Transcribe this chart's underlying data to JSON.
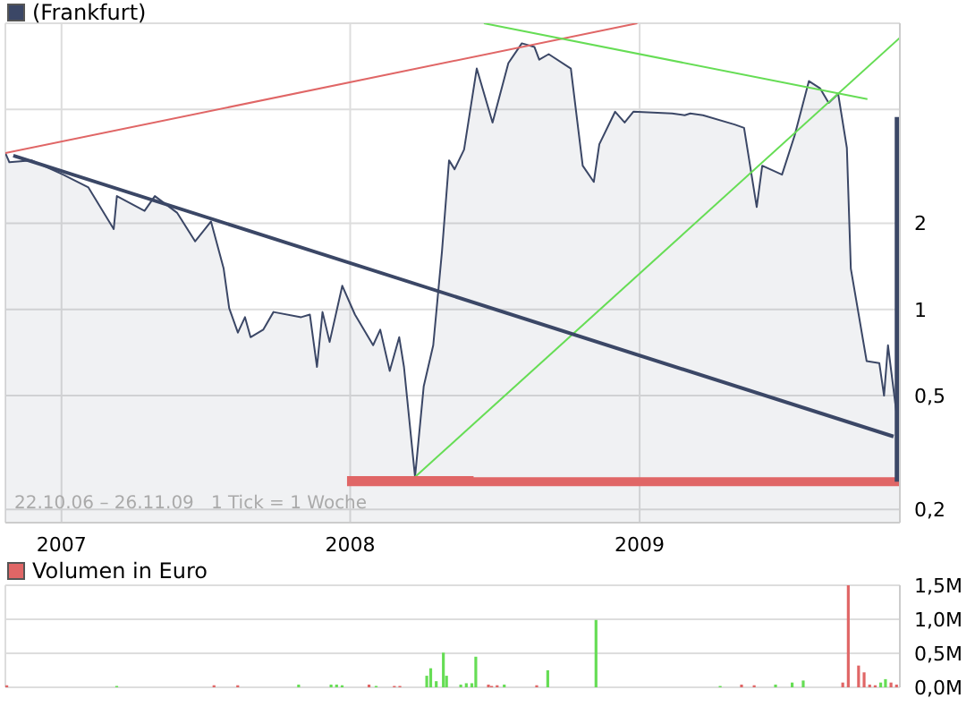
{
  "chart_data": [
    {
      "type": "area",
      "legend": "top left",
      "grid": true,
      "log": "y",
      "marker": "none",
      "annotations": [
        "22.10.06 – 26.11.09   1 Tick = 1 Woche"
      ],
      "xlim": [
        "2006-10-22",
        "2009-11-26"
      ],
      "xticks": [
        "2007",
        "2008",
        "2009"
      ],
      "ylim": [
        0.18,
        10
      ],
      "yticks": [
        {
          "value": 0.2,
          "label": "0,2"
        },
        {
          "value": 0.5,
          "label": "0,5"
        },
        {
          "value": 1,
          "label": "1"
        },
        {
          "value": 2,
          "label": "2"
        },
        {
          "value": 5,
          "label": null
        },
        {
          "value": 10,
          "label": null
        }
      ],
      "series": [
        {
          "name": "(Frankfurt)",
          "color": "#3b4766",
          "x": [
            "2006-10-22",
            "2006-10-27",
            "2006-11-24",
            "2007-01-03",
            "2007-02-04",
            "2007-03-08",
            "2007-03-12",
            "2007-04-16",
            "2007-04-29",
            "2007-05-27",
            "2007-06-19",
            "2007-07-09",
            "2007-07-25",
            "2007-08-01",
            "2007-08-12",
            "2007-08-21",
            "2007-08-28",
            "2007-09-13",
            "2007-09-26",
            "2007-10-31",
            "2007-11-11",
            "2007-11-20",
            "2007-11-27",
            "2007-12-06",
            "2007-12-22",
            "2008-01-07",
            "2008-01-30",
            "2008-02-08",
            "2008-02-20",
            "2008-03-03",
            "2008-03-09",
            "2008-03-23",
            "2008-04-03",
            "2008-04-15",
            "2008-04-26",
            "2008-05-05",
            "2008-05-12",
            "2008-05-24",
            "2008-06-09",
            "2008-06-29",
            "2008-07-19",
            "2008-08-05",
            "2008-08-21",
            "2008-08-27",
            "2008-09-08",
            "2008-10-06",
            "2008-10-21",
            "2008-11-04",
            "2008-11-11",
            "2008-12-01",
            "2008-12-13",
            "2008-12-24",
            "2009-02-11",
            "2009-02-27",
            "2009-03-06",
            "2009-03-22",
            "2009-05-01",
            "2009-05-13",
            "2009-05-29",
            "2009-06-05",
            "2009-06-30",
            "2009-07-16",
            "2009-08-03",
            "2009-08-17",
            "2009-08-28",
            "2009-09-09",
            "2009-09-20",
            "2009-09-25",
            "2009-10-15",
            "2009-10-31",
            "2009-11-06",
            "2009-11-11",
            "2009-11-26"
          ],
          "values": [
            3.52,
            3.27,
            3.32,
            2.96,
            2.67,
            1.91,
            2.49,
            2.21,
            2.49,
            2.18,
            1.73,
            2.03,
            1.39,
            1.01,
            0.83,
            0.94,
            0.8,
            0.85,
            0.98,
            0.94,
            0.96,
            0.63,
            0.98,
            0.77,
            1.21,
            0.96,
            0.75,
            0.85,
            0.61,
            0.8,
            0.63,
            0.26,
            0.54,
            0.75,
            1.59,
            3.32,
            3.09,
            3.62,
            6.95,
            4.5,
            7.26,
            8.51,
            8.26,
            7.46,
            7.8,
            6.95,
            3.18,
            2.79,
            3.78,
            4.91,
            4.5,
            4.91,
            4.84,
            4.77,
            4.84,
            4.77,
            4.43,
            4.31,
            2.28,
            3.18,
            2.96,
            4.06,
            6.28,
            5.93,
            5.27,
            5.67,
            3.67,
            1.39,
            0.66,
            0.65,
            0.5,
            0.75,
            0.35
          ]
        },
        {
          "type": "line",
          "color": "#e06666",
          "x": [
            "2006-10-22",
            "2008-12-29"
          ],
          "values": [
            3.52,
            10
          ]
        },
        {
          "type": "line",
          "color": "#66dd55",
          "x": [
            "2008-06-18",
            "2009-10-16"
          ],
          "values": [
            10,
            5.43
          ]
        },
        {
          "type": "line",
          "color": "#66dd55",
          "x": [
            "2008-03-23",
            "2009-11-26"
          ],
          "values": [
            0.26,
            8.9
          ]
        },
        {
          "type": "line",
          "color": "#e06666",
          "x": [
            "2007-12-28",
            "2008-06-05"
          ],
          "values": [
            0.26,
            0.26
          ]
        },
        {
          "type": "line",
          "color": "#e06666",
          "x": [
            "2007-12-28",
            "2009-11-26"
          ],
          "values": [
            0.25,
            0.25
          ]
        },
        {
          "type": "line",
          "color": "#3b4766",
          "x": [
            "2009-11-24",
            "2009-11-24"
          ],
          "values": [
            0.25,
            4.7
          ]
        },
        {
          "type": "line",
          "color": "#3b4766",
          "x": [
            "2006-11-01",
            "2009-11-18"
          ],
          "values": [
            3.45,
            0.36
          ]
        }
      ]
    },
    {
      "type": "bar",
      "legend": "top left",
      "grid": true,
      "tick_labels": "y",
      "xlim": [
        "2006-10-22",
        "2009-11-26"
      ],
      "xticks": [
        "2007",
        "2008",
        "2009"
      ],
      "ylim": [
        0,
        1.5
      ],
      "yticks": [
        {
          "value": 0,
          "label": "0,0M"
        },
        {
          "value": 0.5,
          "label": "0,5M"
        },
        {
          "value": 1,
          "label": "1,0M"
        },
        {
          "value": 1.5,
          "label": "1,5M"
        }
      ],
      "series": [
        {
          "name": "Volumen in Euro",
          "color": "#e06666",
          "x": [
            "2006-10-24",
            "2007-03-12",
            "2007-07-13",
            "2007-08-12",
            "2007-10-28",
            "2007-12-08",
            "2007-12-15",
            "2007-12-22",
            "2008-01-25",
            "2008-02-03",
            "2008-02-26",
            "2008-03-04",
            "2008-04-07",
            "2008-04-12",
            "2008-04-19",
            "2008-04-28",
            "2008-05-02",
            "2008-05-20",
            "2008-05-27",
            "2008-06-03",
            "2008-06-08",
            "2008-06-24",
            "2008-06-28",
            "2008-07-05",
            "2008-07-14",
            "2008-08-24",
            "2008-09-07",
            "2008-11-07",
            "2009-04-13",
            "2009-05-10",
            "2009-05-26",
            "2009-06-22",
            "2009-07-13",
            "2009-07-27",
            "2009-09-15",
            "2009-09-22",
            "2009-10-05",
            "2009-10-12",
            "2009-10-19",
            "2009-10-26",
            "2009-11-02",
            "2009-11-08",
            "2009-11-15",
            "2009-11-22"
          ],
          "values": [
            0.03,
            0.02,
            0.03,
            0.03,
            0.04,
            0.04,
            0.04,
            0.03,
            0.04,
            0.02,
            0.02,
            0.02,
            0.17,
            0.28,
            0.09,
            0.51,
            0.17,
            0.04,
            0.06,
            0.06,
            0.45,
            0.04,
            0.02,
            0.03,
            0.04,
            0.03,
            0.25,
            0.99,
            0.02,
            0.04,
            0.03,
            0.04,
            0.07,
            0.1,
            0.07,
            1.5,
            0.32,
            0.22,
            0.04,
            0.03,
            0.07,
            0.12,
            0.07,
            0.04
          ],
          "colors": [
            "#e06666",
            "#66dd55",
            "#e06666",
            "#e06666",
            "#66dd55",
            "#66dd55",
            "#66dd55",
            "#66dd55",
            "#e06666",
            "#66dd55",
            "#e06666",
            "#e06666",
            "#66dd55",
            "#66dd55",
            "#66dd55",
            "#66dd55",
            "#66dd55",
            "#66dd55",
            "#66dd55",
            "#66dd55",
            "#66dd55",
            "#e06666",
            "#e06666",
            "#e06666",
            "#66dd55",
            "#e06666",
            "#66dd55",
            "#66dd55",
            "#66dd55",
            "#e06666",
            "#e06666",
            "#66dd55",
            "#66dd55",
            "#66dd55",
            "#e06666",
            "#e06666",
            "#e06666",
            "#e06666",
            "#e06666",
            "#e06666",
            "#66dd55",
            "#66dd55",
            "#e06666",
            "#e06666"
          ]
        }
      ]
    }
  ]
}
